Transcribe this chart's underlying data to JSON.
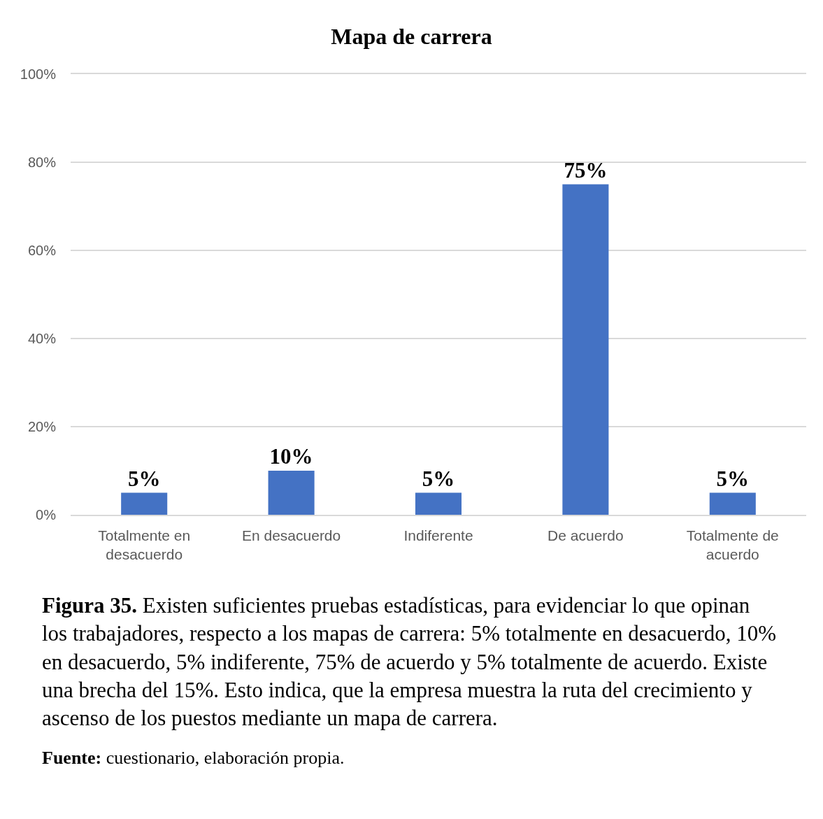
{
  "chart_data": {
    "type": "bar",
    "title": "Mapa de carrera",
    "categories": [
      "Totalmente en desacuerdo",
      "En desacuerdo",
      "Indiferente",
      "De acuerdo",
      "Totalmente de acuerdo"
    ],
    "values": [
      5,
      10,
      5,
      75,
      5
    ],
    "color": "#4472c4",
    "value_labels": [
      "5%",
      "10%",
      "5%",
      "75%",
      "5%"
    ],
    "ylim": [
      0,
      100
    ],
    "yticks": [
      {
        "value": 0,
        "label": "0%"
      },
      {
        "value": 20,
        "label": "20%"
      },
      {
        "value": 40,
        "label": "40%"
      },
      {
        "value": 60,
        "label": "60%"
      },
      {
        "value": 80,
        "label": "80%"
      },
      {
        "value": 100,
        "label": "100%"
      }
    ],
    "grid": "y",
    "annotations": [
      "Figura 35. Existen suficientes pruebas estadísticas, para evidenciar lo que opinan los trabajadores, respecto a los mapas de carrera: 5% totalmente en desacuerdo, 10% en desacuerdo, 5% indiferente, 75% de acuerdo y 5% totalmente de acuerdo. Existe una brecha del 15%. Esto indica, que la empresa muestra la ruta del crecimiento y ascenso de los puestos mediante un mapa de carrera.",
      "Fuente: cuestionario, elaboración propia."
    ]
  }
}
